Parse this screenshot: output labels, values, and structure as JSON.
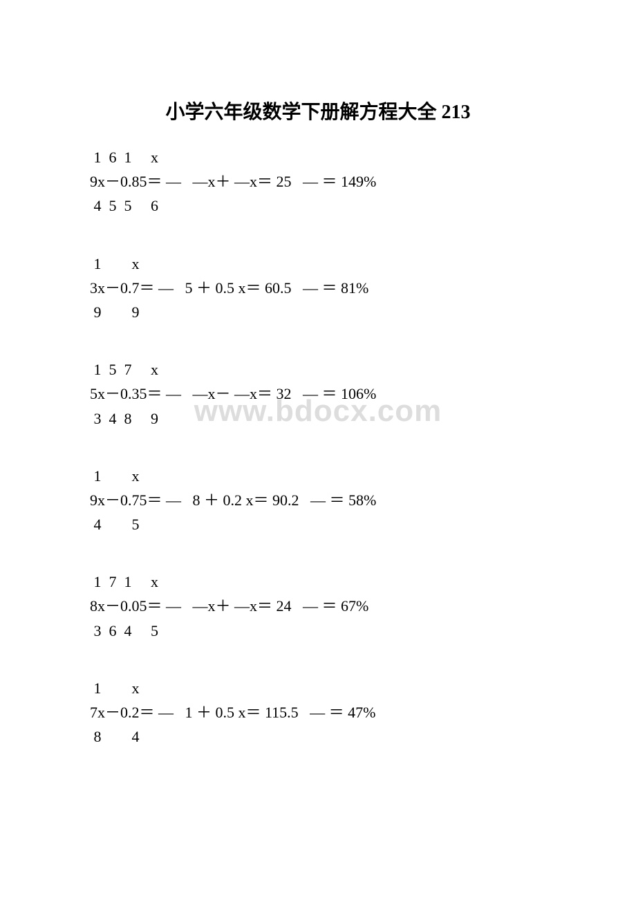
{
  "title": "小学六年级数学下册解方程大全 213",
  "watermark": "www.bdocx.com",
  "groups": [
    {
      "top": " 1  6  1     x",
      "mid": "9x－0.85＝ —   —x＋ —x＝ 25   — ＝ 149%",
      "bottom": " 4  5  5     6"
    },
    {
      "top": " 1        x",
      "mid": "3x－0.7＝ —   5 ＋ 0.5 x＝ 60.5   — ＝ 81%",
      "bottom": " 9        9"
    },
    {
      "top": " 1  5  7     x",
      "mid": "5x－0.35＝ —   —x－ —x＝ 32   — ＝ 106%",
      "bottom": " 3  4  8     9"
    },
    {
      "top": " 1        x",
      "mid": "9x－0.75＝ —   8 ＋ 0.2 x＝ 90.2   — ＝ 58%",
      "bottom": " 4        5"
    },
    {
      "top": " 1  7  1     x",
      "mid": "8x－0.05＝ —   —x＋ —x＝ 24   — ＝ 67%",
      "bottom": " 3  6  4     5"
    },
    {
      "top": " 1        x",
      "mid": "7x－0.2＝ —   1 ＋ 0.5 x＝ 115.5   — ＝ 47%",
      "bottom": " 8        4"
    }
  ],
  "colors": {
    "text": "#000000",
    "background": "#ffffff",
    "watermark": "#dddddd"
  },
  "typography": {
    "title_fontsize": 28,
    "body_fontsize": 22,
    "watermark_fontsize": 44
  }
}
